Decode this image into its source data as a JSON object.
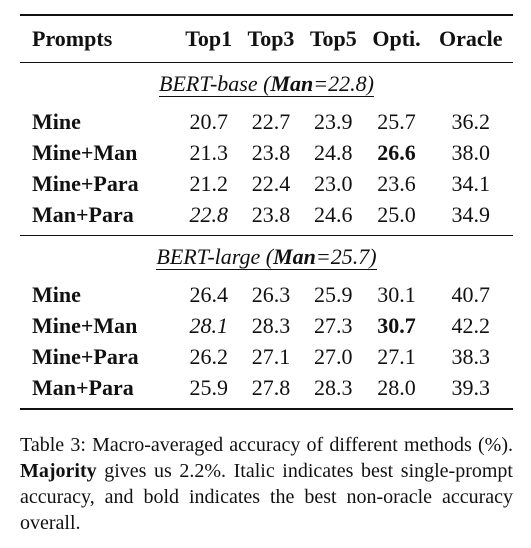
{
  "table": {
    "headers": [
      "Prompts",
      "Top1",
      "Top3",
      "Top5",
      "Opti.",
      "Oracle"
    ],
    "sections": [
      {
        "model": "BERT-base",
        "man_label": "Man",
        "man_value": "=22.8",
        "rows": [
          {
            "prompt": "Mine",
            "values": [
              "20.7",
              "22.7",
              "23.9",
              "25.7",
              "36.2"
            ],
            "italic": [],
            "bold": []
          },
          {
            "prompt": "Mine+Man",
            "values": [
              "21.3",
              "23.8",
              "24.8",
              "26.6",
              "38.0"
            ],
            "italic": [],
            "bold": [
              3
            ]
          },
          {
            "prompt": "Mine+Para",
            "values": [
              "21.2",
              "22.4",
              "23.0",
              "23.6",
              "34.1"
            ],
            "italic": [],
            "bold": []
          },
          {
            "prompt": "Man+Para",
            "values": [
              "22.8",
              "23.8",
              "24.6",
              "25.0",
              "34.9"
            ],
            "italic": [
              0
            ],
            "bold": []
          }
        ]
      },
      {
        "model": "BERT-large",
        "man_label": "Man",
        "man_value": "=25.7",
        "rows": [
          {
            "prompt": "Mine",
            "values": [
              "26.4",
              "26.3",
              "25.9",
              "30.1",
              "40.7"
            ],
            "italic": [],
            "bold": []
          },
          {
            "prompt": "Mine+Man",
            "values": [
              "28.1",
              "28.3",
              "27.3",
              "30.7",
              "42.2"
            ],
            "italic": [
              0
            ],
            "bold": [
              3
            ]
          },
          {
            "prompt": "Mine+Para",
            "values": [
              "26.2",
              "27.1",
              "27.0",
              "27.1",
              "38.3"
            ],
            "italic": [],
            "bold": []
          },
          {
            "prompt": "Man+Para",
            "values": [
              "25.9",
              "27.8",
              "28.3",
              "28.0",
              "39.3"
            ],
            "italic": [],
            "bold": []
          }
        ]
      }
    ]
  },
  "caption": {
    "prefix": "Table 3: Macro-averaged accuracy of different methods (%). ",
    "bold_term": "Majority",
    "suffix": " gives us 2.2%. Italic indicates best single-prompt accuracy, and bold indicates the best non-oracle accuracy overall."
  }
}
